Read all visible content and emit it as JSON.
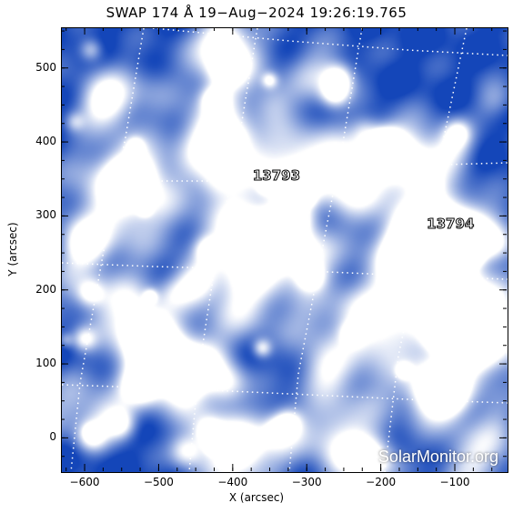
{
  "title": "SWAP 174 Å 19−Aug−2024 19:26:19.765",
  "axes": {
    "xlabel": "X (arcsec)",
    "ylabel": "Y (arcsec)",
    "xlim": [
      -632,
      -30
    ],
    "ylim": [
      -45,
      555
    ],
    "xticks": [
      "−600",
      "−500",
      "−400",
      "−300",
      "−200",
      "−100"
    ],
    "xtick_values": [
      -600,
      -500,
      -400,
      -300,
      -200,
      -100
    ],
    "yticks": [
      "0",
      "100",
      "200",
      "300",
      "400",
      "500"
    ],
    "ytick_values": [
      0,
      100,
      200,
      300,
      400,
      500
    ]
  },
  "regions": [
    {
      "label": "13793",
      "x": -325,
      "y": 355
    },
    {
      "label": "13794",
      "x": -90,
      "y": 290
    }
  ],
  "watermark": "SolarMonitor.org",
  "colors": {
    "background": "#1a4fb8",
    "bright": "#ffffff",
    "mid": "#5f93e0"
  }
}
